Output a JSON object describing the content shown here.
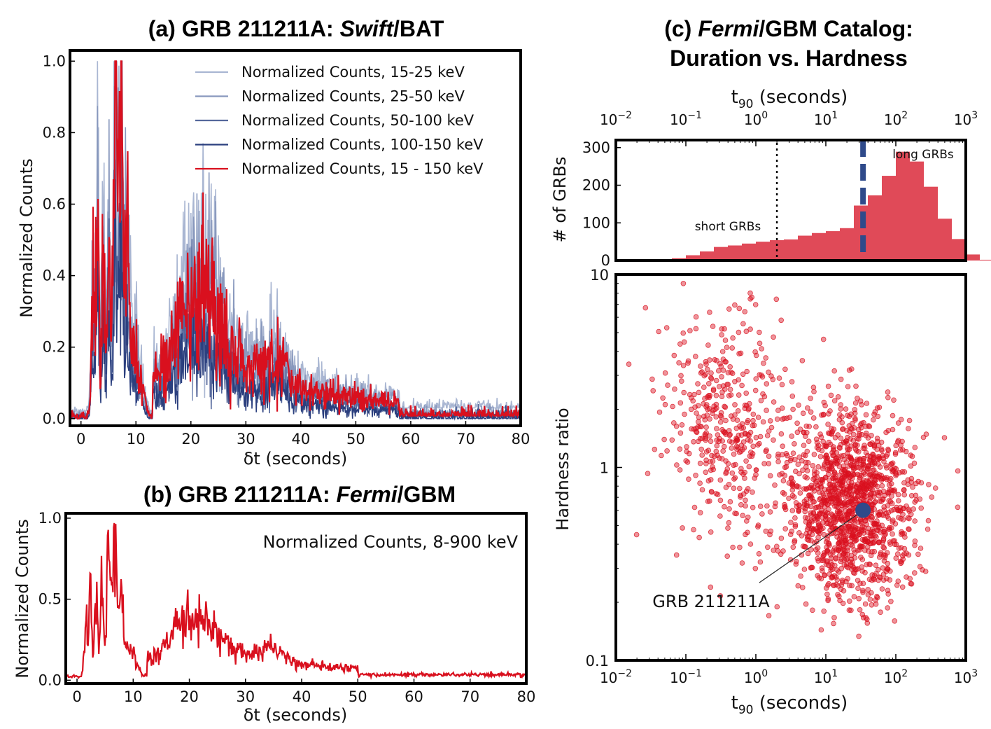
{
  "panel_a": {
    "title_pre": "(a) GRB 211211A: ",
    "title_em": "Swift",
    "title_post": "/BAT"
  },
  "panel_b": {
    "title_pre": "(b) GRB 211211A: ",
    "title_em": "Fermi",
    "title_post": "/GBM"
  },
  "panel_c": {
    "title_line1_pre": "(c) ",
    "title_line1_em": "Fermi",
    "title_line1_post": "/GBM Catalog:",
    "title_line2": "Duration vs. Hardness"
  },
  "colors": {
    "red": "#d9101e",
    "hist_red": "#e04a58",
    "navy": "#2f4a8a",
    "c15_25": "#a9b6d2",
    "c25_50": "#8898bd",
    "c50_100": "#55689c",
    "c100_150": "#2b3f7e"
  },
  "chart_data": [
    {
      "id": "a",
      "type": "line",
      "title": "(a) GRB 211211A: Swift/BAT",
      "xlabel": "δt (seconds)",
      "ylabel": "Normalized Counts",
      "xlim": [
        -2,
        80
      ],
      "ylim": [
        -0.02,
        1.03
      ],
      "xticks": [
        0,
        10,
        20,
        30,
        40,
        50,
        60,
        70,
        80
      ],
      "yticks": [
        0.0,
        0.2,
        0.4,
        0.6,
        0.8,
        1.0
      ],
      "xtick_labels": [
        "0",
        "10",
        "20",
        "30",
        "40",
        "50",
        "60",
        "70",
        "80"
      ],
      "ytick_labels": [
        "0.0",
        "0.2",
        "0.4",
        "0.6",
        "0.8",
        "1.0"
      ],
      "legend_position": "top-right",
      "series": [
        {
          "name": "Normalized Counts, 15-25 keV",
          "color_key": "c15_25",
          "scale": 1.22,
          "floor": 0.02
        },
        {
          "name": "Normalized Counts, 25-50 keV",
          "color_key": "c25_50",
          "scale": 1.05,
          "floor": 0.012
        },
        {
          "name": "Normalized Counts, 50-100 keV",
          "color_key": "c50_100",
          "scale": 0.72,
          "floor": 0.005
        },
        {
          "name": "Normalized Counts, 100-150 keV",
          "color_key": "c100_150",
          "scale": 0.55,
          "floor": 0.0
        },
        {
          "name": "Normalized Counts, 15 - 150 keV",
          "color_key": "red",
          "scale": 1.0,
          "floor": 0.008
        }
      ]
    },
    {
      "id": "b",
      "type": "line",
      "title": "(b) GRB 211211A: Fermi/GBM",
      "xlabel": "δt (seconds)",
      "ylabel": "Normalized Counts",
      "xlim": [
        -2,
        80
      ],
      "ylim": [
        -0.02,
        1.03
      ],
      "xticks": [
        0,
        10,
        20,
        30,
        40,
        50,
        60,
        70,
        80
      ],
      "yticks": [
        0.0,
        0.5,
        1.0
      ],
      "xtick_labels": [
        "0",
        "10",
        "20",
        "30",
        "40",
        "50",
        "60",
        "70",
        "80"
      ],
      "ytick_labels": [
        "0.0",
        "0.5",
        "1.0"
      ],
      "series": [
        {
          "name": "Normalized Counts, 8-900 keV",
          "color_key": "red"
        }
      ]
    },
    {
      "id": "c_hist",
      "type": "bar",
      "xlabel": "t90 (seconds)",
      "ylabel": "# of GRBs",
      "xscale": "log",
      "xlim": [
        0.01,
        1000
      ],
      "ylim": [
        0,
        320
      ],
      "yticks": [
        0,
        100,
        200,
        300
      ],
      "ytick_labels": [
        "0",
        "100",
        "200",
        "300"
      ],
      "xtick_exponents": [
        "−2",
        "−1",
        "0",
        "1",
        "2",
        "3"
      ],
      "bin_log_edges_start": -1.4,
      "bin_log_width": 0.2,
      "bin_counts": [
        2,
        6,
        14,
        24,
        36,
        40,
        45,
        50,
        54,
        56,
        66,
        73,
        78,
        86,
        146,
        173,
        225,
        289,
        263,
        196,
        111,
        57,
        16,
        2
      ],
      "short_long_divider_t90": 2,
      "target_t90": 34,
      "annotations": [
        "short GRBs",
        "long GRBs"
      ]
    },
    {
      "id": "c_scatter",
      "type": "scatter",
      "xlabel": "t90 (seconds)",
      "ylabel": "Hardness ratio",
      "xscale": "log",
      "yscale": "log",
      "xlim": [
        0.01,
        1000
      ],
      "ylim": [
        0.1,
        10
      ],
      "ytick_labels": [
        "0.1",
        "1",
        "10"
      ],
      "xtick_exponents": [
        "−2",
        "−1",
        "0",
        "1",
        "2",
        "3"
      ],
      "clusters": [
        {
          "name": "short",
          "n": 420,
          "log_t90_mean": -0.45,
          "log_t90_sd": 0.45,
          "log_hr_mean": 0.22,
          "log_hr_sd": 0.3
        },
        {
          "name": "long",
          "n": 1380,
          "log_t90_mean": 1.35,
          "log_t90_sd": 0.45,
          "log_hr_mean": -0.18,
          "log_hr_sd": 0.24
        }
      ],
      "highlight": {
        "label": "GRB 211211A",
        "t90": 34,
        "hardness": 0.6
      }
    }
  ]
}
